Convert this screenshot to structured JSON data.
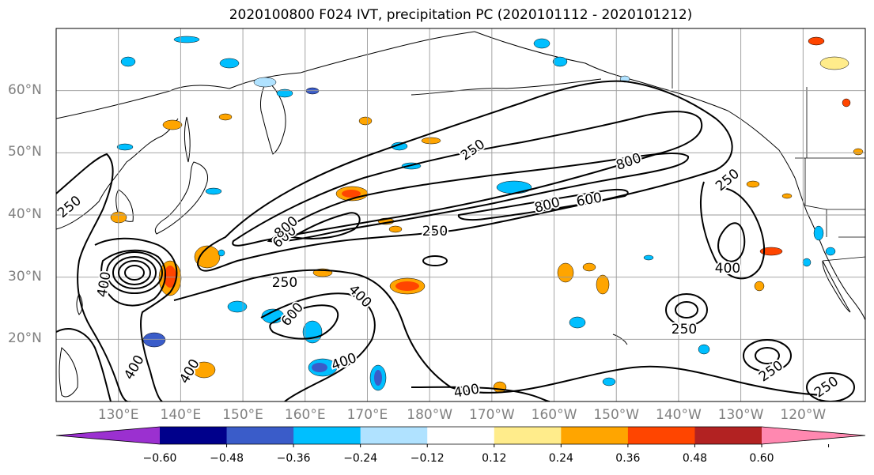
{
  "title": "2020100800 F024 IVT, precipitation PC (2020101112 - 2020101212)",
  "map": {
    "projection": "PlateCarree",
    "lon_range_deg_east": [
      120,
      250
    ],
    "lat_range_deg": [
      10,
      70
    ],
    "grid": true,
    "lat_labels": [
      "60°N",
      "50°N",
      "40°N",
      "30°N",
      "20°N"
    ],
    "lat_values": [
      60,
      50,
      40,
      30,
      20
    ],
    "lon_labels": [
      "130°E",
      "140°E",
      "150°E",
      "160°E",
      "170°E",
      "180°W",
      "170°W",
      "160°W",
      "150°W",
      "140°W",
      "130°W",
      "120°W"
    ],
    "lon_values": [
      130,
      140,
      150,
      160,
      170,
      180,
      190,
      200,
      210,
      220,
      230,
      240
    ],
    "ivt_contour_levels": [
      250,
      400,
      600,
      800
    ],
    "ivt_contour_labels_visible": [
      "250",
      "250",
      "250",
      "250",
      "250",
      "250",
      "250",
      "250",
      "400",
      "400",
      "400",
      "400",
      "400",
      "400",
      "400",
      "600",
      "600",
      "600",
      "800",
      "800",
      "800"
    ]
  },
  "colorbar": {
    "extend": "both",
    "boundaries": [
      -0.6,
      -0.48,
      -0.36,
      -0.24,
      -0.12,
      0.12,
      0.24,
      0.36,
      0.48,
      0.6
    ],
    "tick_labels": [
      "−0.60",
      "−0.48",
      "−0.36",
      "−0.24",
      "−0.12",
      "0.12",
      "0.24",
      "0.36",
      "0.48",
      "0.60"
    ],
    "colors": {
      "under": "#9b30d0",
      "bins": [
        "#00008b",
        "#3a5cc9",
        "#00bfff",
        "#b0e2ff",
        "#ffffff",
        "#ffec8b",
        "#ffa500",
        "#ff4500",
        "#b22222"
      ],
      "over": "#ff88b0"
    }
  }
}
